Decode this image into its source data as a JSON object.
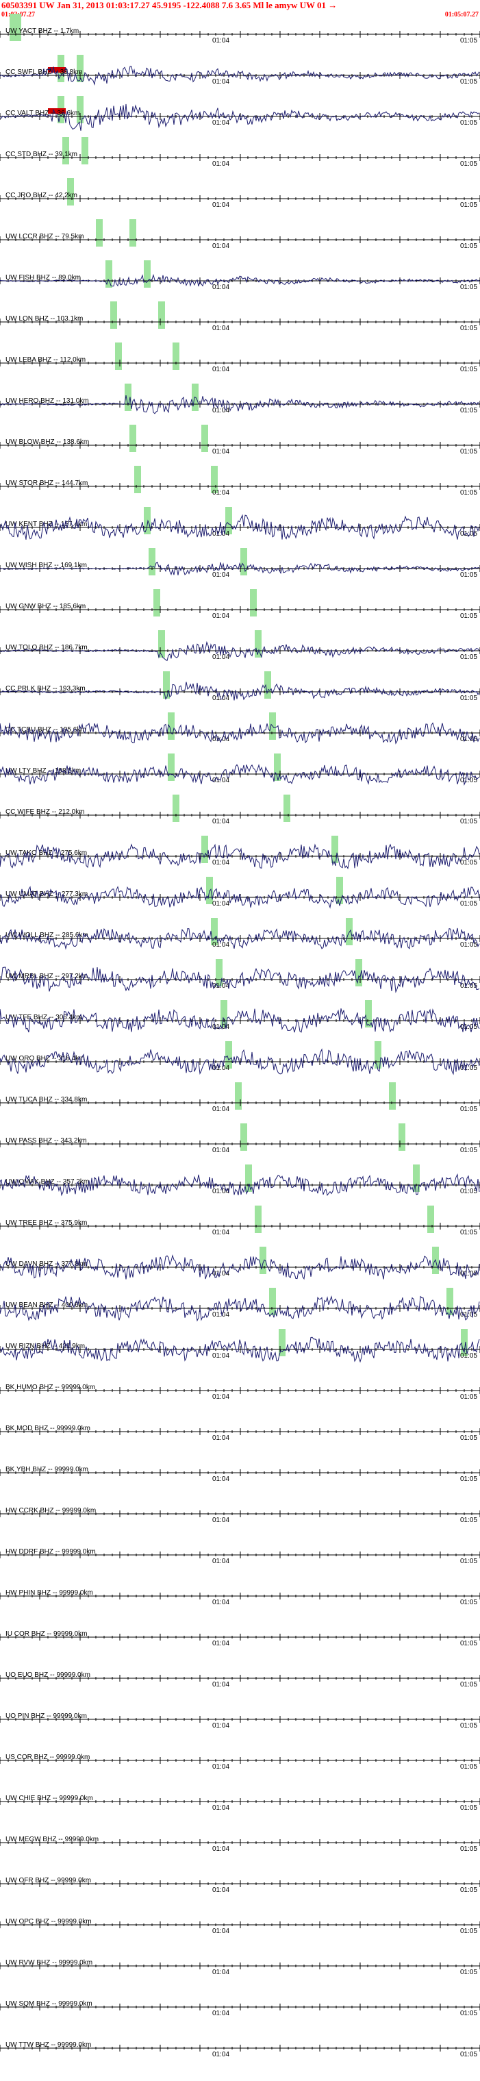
{
  "header": {
    "title": "60503391 UW Jan 31, 2013 01:03:17.27    45.9195 -122.4088  7.6 3.65 Ml le amyw UW 01  →",
    "start_time": "01:03:07.27",
    "end_time": "01:05:07.27"
  },
  "colors": {
    "trace": "#1c1c6e",
    "header": "#ff0000",
    "pick": "#9ee39e",
    "pick_red": "#cc0000",
    "axis": "#000000"
  },
  "tick_labels": {
    "a": "01:04",
    "b": "01:05"
  },
  "stations": [
    {
      "label": "UW YACT BHZ -- 1.7km",
      "amp": 0,
      "onset": 0,
      "pick1": 0.02,
      "pick2": 0.03,
      "red": false
    },
    {
      "label": "CC SWFL BHZ -- 33.8km",
      "amp": 14,
      "onset": 0.09,
      "pick1": 0.12,
      "pick2": 0.16,
      "red": true
    },
    {
      "label": "CC VALT BHZ -- 36.6km",
      "amp": 18,
      "onset": 0.1,
      "pick1": 0.12,
      "pick2": 0.16,
      "red": true
    },
    {
      "label": "CC STD BHZ -- 39.1km",
      "amp": 0,
      "onset": 0,
      "pick1": 0.13,
      "pick2": 0.17,
      "red": false
    },
    {
      "label": "CC JRO BHZ -- 42.2km",
      "amp": 0,
      "onset": 0,
      "pick1": 0.14,
      "pick2": 0.0,
      "red": false
    },
    {
      "label": "UW LCCR BHZ -- 79.5km",
      "amp": 0,
      "onset": 0,
      "pick1": 0.2,
      "pick2": 0.27,
      "red": false
    },
    {
      "label": "UW FISH BHZ -- 89.0km",
      "amp": 8,
      "onset": 0.22,
      "pick1": 0.22,
      "pick2": 0.3,
      "red": false
    },
    {
      "label": "UW LON BHZ -- 103.1km",
      "amp": 0,
      "onset": 0,
      "pick1": 0.23,
      "pick2": 0.33,
      "red": false
    },
    {
      "label": "UW LEBA BHZ -- 112.0km",
      "amp": 0,
      "onset": 0,
      "pick1": 0.24,
      "pick2": 0.36,
      "red": false
    },
    {
      "label": "UW HERO BHZ -- 131.0km",
      "amp": 12,
      "onset": 0.26,
      "pick1": 0.26,
      "pick2": 0.4,
      "red": false
    },
    {
      "label": "UW BLOW BHZ -- 138.6km",
      "amp": 0,
      "onset": 0,
      "pick1": 0.27,
      "pick2": 0.42,
      "red": false
    },
    {
      "label": "UW STOR BHZ -- 144.7km",
      "amp": 0,
      "onset": 0,
      "pick1": 0.28,
      "pick2": 0.44,
      "red": false
    },
    {
      "label": "UW KENT BHZ -- 157.4km",
      "amp": 14,
      "onset": 0.0,
      "pick1": 0.3,
      "pick2": 0.47,
      "red": false
    },
    {
      "label": "UW WISH BHZ -- 169.1km",
      "amp": 10,
      "onset": 0.31,
      "pick1": 0.31,
      "pick2": 0.5,
      "red": false
    },
    {
      "label": "UW GNW BHZ -- 185.6km",
      "amp": 0,
      "onset": 0,
      "pick1": 0.32,
      "pick2": 0.52,
      "red": false
    },
    {
      "label": "UW TOLO BHZ -- 186.7km",
      "amp": 12,
      "onset": 0.33,
      "pick1": 0.33,
      "pick2": 0.53,
      "red": false
    },
    {
      "label": "CC PRLK BHZ -- 193.3km",
      "amp": 12,
      "onset": 0.34,
      "pick1": 0.34,
      "pick2": 0.55,
      "red": false
    },
    {
      "label": "CC TCBU BHZ -- 195.6km",
      "amp": 12,
      "onset": 0.0,
      "pick1": 0.35,
      "pick2": 0.56,
      "red": false
    },
    {
      "label": "UW LTY BHZ -- 198.5km",
      "amp": 12,
      "onset": 0.0,
      "pick1": 0.35,
      "pick2": 0.57,
      "red": false
    },
    {
      "label": "CC WIFE BHZ -- 212.0km",
      "amp": 0,
      "onset": 0,
      "pick1": 0.36,
      "pick2": 0.59,
      "red": false
    },
    {
      "label": "UW TAKO BHZ -- 275.6km",
      "amp": 14,
      "onset": 0.0,
      "pick1": 0.42,
      "pick2": 0.69,
      "red": false
    },
    {
      "label": "UW UMAT BHZ -- 277.3km",
      "amp": 12,
      "onset": 0.0,
      "pick1": 0.43,
      "pick2": 0.7,
      "red": false
    },
    {
      "label": "UW WOLL BHZ -- 285.6km",
      "amp": 12,
      "onset": 0.0,
      "pick1": 0.44,
      "pick2": 0.72,
      "red": false
    },
    {
      "label": "UW MRBL BHZ -- 297.2km",
      "amp": 14,
      "onset": 0.0,
      "pick1": 0.45,
      "pick2": 0.74,
      "red": false
    },
    {
      "label": "UW TFE BHZ -- 306.4km",
      "amp": 14,
      "onset": 0.0,
      "pick1": 0.46,
      "pick2": 0.76,
      "red": false
    },
    {
      "label": "UW ORO BHZ -- 318.4km",
      "amp": 14,
      "onset": 0.0,
      "pick1": 0.47,
      "pick2": 0.78,
      "red": false
    },
    {
      "label": "UW TUCA BHZ -- 334.8km",
      "amp": 0,
      "onset": 0,
      "pick1": 0.49,
      "pick2": 0.81,
      "red": false
    },
    {
      "label": "UW PASS BHZ -- 343.2km",
      "amp": 0,
      "onset": 0,
      "pick1": 0.5,
      "pick2": 0.83,
      "red": false
    },
    {
      "label": "UW OMAK BHZ -- 357.2km",
      "amp": 12,
      "onset": 0.0,
      "pick1": 0.51,
      "pick2": 0.86,
      "red": false
    },
    {
      "label": "UW TREE BHZ -- 375.9km",
      "amp": 0,
      "onset": 0,
      "pick1": 0.53,
      "pick2": 0.89,
      "red": false
    },
    {
      "label": "UW DAVN BHZ -- 377.8km",
      "amp": 14,
      "onset": 0.0,
      "pick1": 0.54,
      "pick2": 0.9,
      "red": false
    },
    {
      "label": "UW BEAN BHZ -- 400.6km",
      "amp": 14,
      "onset": 0.0,
      "pick1": 0.56,
      "pick2": 0.93,
      "red": false
    },
    {
      "label": "UW RIZN BHZ -- 421.9km",
      "amp": 14,
      "onset": 0.0,
      "pick1": 0.58,
      "pick2": 0.96,
      "red": false
    },
    {
      "label": "BK HUMO BHZ -- 99999.0km",
      "amp": 0,
      "onset": 0,
      "pick1": 0,
      "pick2": 0,
      "red": false
    },
    {
      "label": "BK MOD BHZ -- 99999.0km",
      "amp": 0,
      "onset": 0,
      "pick1": 0,
      "pick2": 0,
      "red": false
    },
    {
      "label": "BK YBH BHZ -- 99999.0km",
      "amp": 0,
      "onset": 0,
      "pick1": 0,
      "pick2": 0,
      "red": false
    },
    {
      "label": "HW CCRK BHZ -- 99999.0km",
      "amp": 0,
      "onset": 0,
      "pick1": 0,
      "pick2": 0,
      "red": false
    },
    {
      "label": "HW DDRF BHZ -- 99999.0km",
      "amp": 0,
      "onset": 0,
      "pick1": 0,
      "pick2": 0,
      "red": false
    },
    {
      "label": "HW PHIN BHZ -- 99999.0km",
      "amp": 0,
      "onset": 0,
      "pick1": 0,
      "pick2": 0,
      "red": false
    },
    {
      "label": "IU COR BHZ -- 99999.0km",
      "amp": 0,
      "onset": 0,
      "pick1": 0,
      "pick2": 0,
      "red": false
    },
    {
      "label": "UO EUO BHZ -- 99999.0km",
      "amp": 0,
      "onset": 0,
      "pick1": 0,
      "pick2": 0,
      "red": false
    },
    {
      "label": "UO PIN BHZ -- 99999.0km",
      "amp": 0,
      "onset": 0,
      "pick1": 0,
      "pick2": 0,
      "red": false
    },
    {
      "label": "US COR BHZ -- 99999.0km",
      "amp": 0,
      "onset": 0,
      "pick1": 0,
      "pick2": 0,
      "red": false
    },
    {
      "label": "UW CHIE BHZ -- 99999.0km",
      "amp": 0,
      "onset": 0,
      "pick1": 0,
      "pick2": 0,
      "red": false
    },
    {
      "label": "UW MEGW BHZ -- 99999.0km",
      "amp": 0,
      "onset": 0,
      "pick1": 0,
      "pick2": 0,
      "red": false
    },
    {
      "label": "UW OFR BHZ -- 99999.0km",
      "amp": 0,
      "onset": 0,
      "pick1": 0,
      "pick2": 0,
      "red": false
    },
    {
      "label": "UW OPC BHZ -- 99999.0km",
      "amp": 0,
      "onset": 0,
      "pick1": 0,
      "pick2": 0,
      "red": false
    },
    {
      "label": "UW RVW BHZ -- 99999.0km",
      "amp": 0,
      "onset": 0,
      "pick1": 0,
      "pick2": 0,
      "red": false
    },
    {
      "label": "UW SQM BHZ -- 99999.0km",
      "amp": 0,
      "onset": 0,
      "pick1": 0,
      "pick2": 0,
      "red": false
    },
    {
      "label": "UW TTW BHZ -- 99999.0km",
      "amp": 0,
      "onset": 0,
      "pick1": 0,
      "pick2": 0,
      "red": false
    }
  ]
}
